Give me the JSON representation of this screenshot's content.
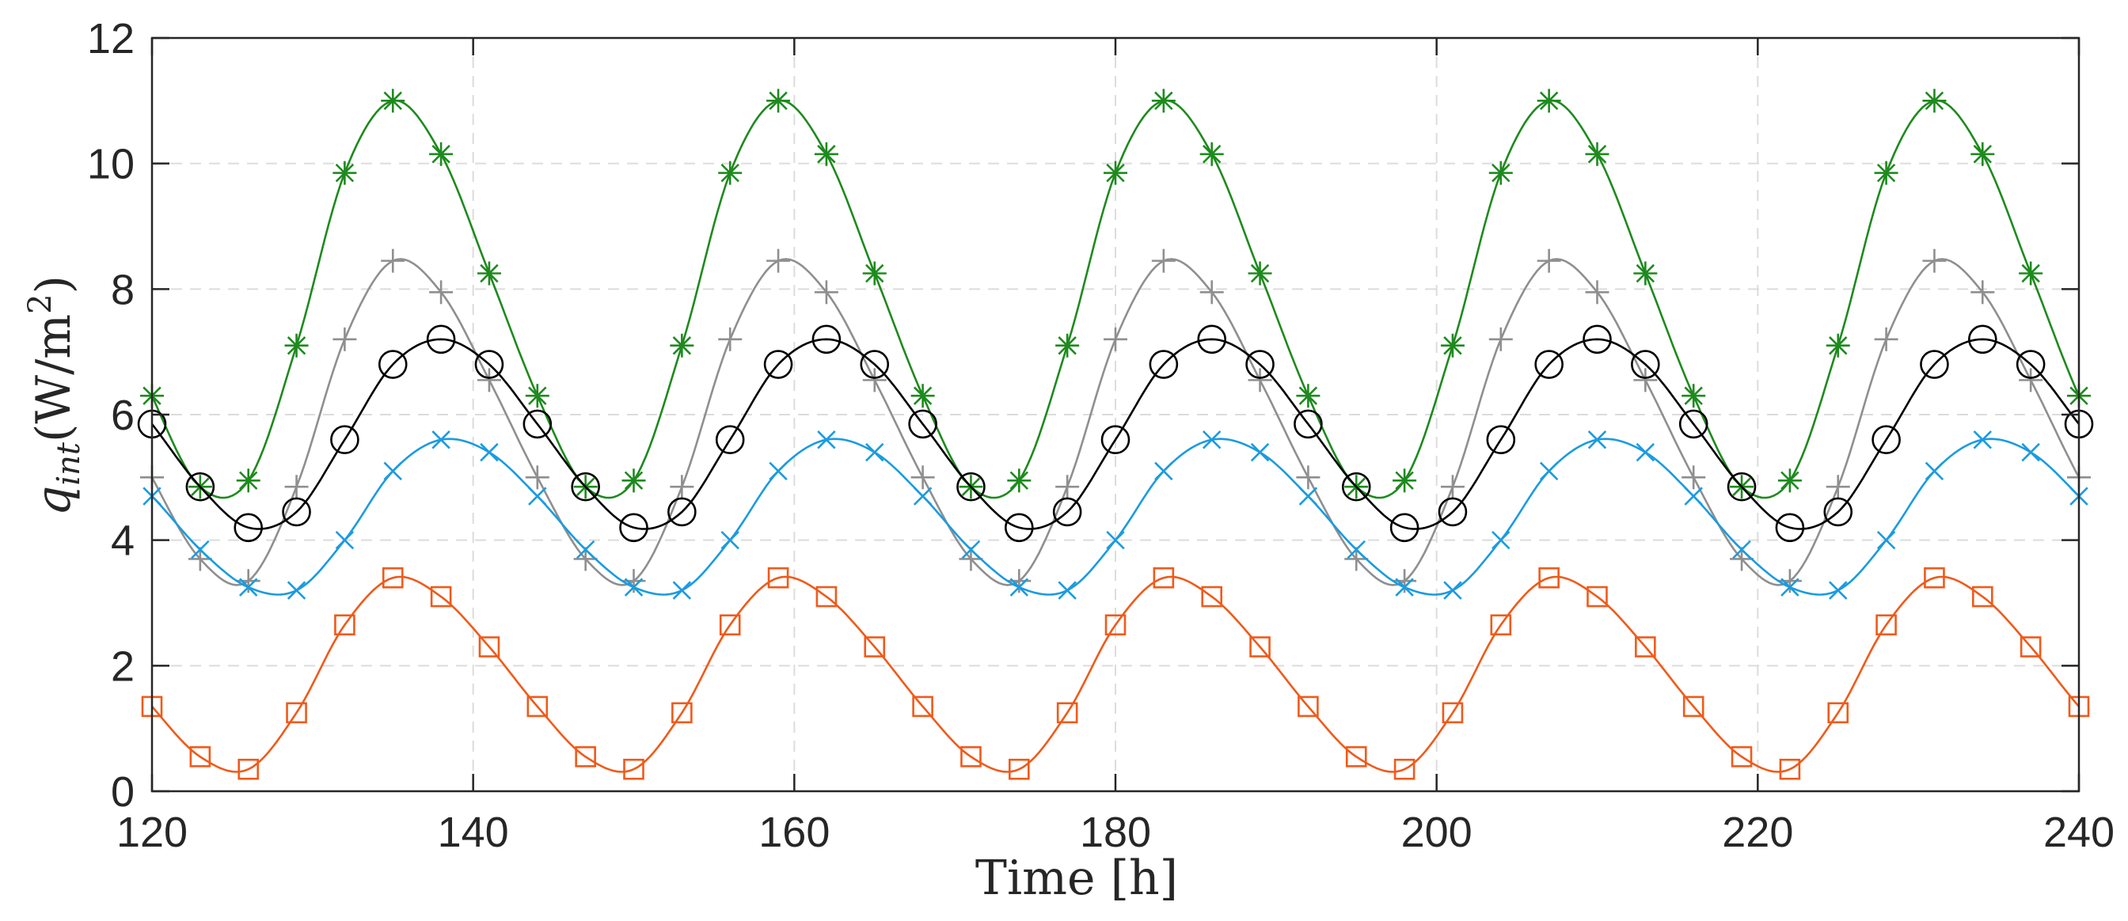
{
  "chart_data": {
    "type": "line",
    "title": "",
    "xlabel": "Time [h]",
    "ylabel": {
      "main": "q",
      "subscript": "int",
      "units": "(W/m",
      "superscript": "2",
      "close": ")"
    },
    "xlim": [
      120,
      240
    ],
    "ylim": [
      0,
      12
    ],
    "xticks": [
      120,
      140,
      160,
      180,
      200,
      220,
      240
    ],
    "yticks": [
      0,
      2,
      4,
      6,
      8,
      10,
      12
    ],
    "grid": true,
    "period_hours": 24,
    "series": [
      {
        "name": "series-green-asterisk",
        "color": "#1e8a1e",
        "marker": "asterisk",
        "x": [
          120,
          123,
          126,
          129,
          132,
          135,
          138,
          141,
          144
        ],
        "values": [
          6.3,
          4.85,
          4.95,
          7.1,
          9.85,
          11.0,
          10.15,
          8.25,
          6.3
        ]
      },
      {
        "name": "series-gray-plus",
        "color": "#8f8f8f",
        "marker": "plus",
        "x": [
          120,
          123,
          126,
          129,
          132,
          135,
          138,
          141,
          144
        ],
        "values": [
          5.0,
          3.7,
          3.35,
          4.85,
          7.2,
          8.45,
          7.95,
          6.55,
          5.0
        ]
      },
      {
        "name": "series-black-circle",
        "color": "#000000",
        "marker": "circle",
        "x": [
          120,
          123,
          126,
          129,
          132,
          135,
          138,
          141,
          144
        ],
        "values": [
          5.85,
          4.85,
          4.2,
          4.45,
          5.6,
          6.8,
          7.2,
          6.8,
          5.85
        ]
      },
      {
        "name": "series-blue-x",
        "color": "#1a9be0",
        "marker": "x",
        "x": [
          120,
          123,
          126,
          129,
          132,
          135,
          138,
          141,
          144
        ],
        "values": [
          4.7,
          3.85,
          3.25,
          3.2,
          4.0,
          5.1,
          5.6,
          5.4,
          4.7
        ]
      },
      {
        "name": "series-orange-square",
        "color": "#f05a1a",
        "marker": "square",
        "x": [
          120,
          123,
          126,
          129,
          132,
          135,
          138,
          141,
          144
        ],
        "values": [
          1.35,
          0.55,
          0.35,
          1.25,
          2.65,
          3.4,
          3.1,
          2.3,
          1.35
        ]
      }
    ]
  }
}
